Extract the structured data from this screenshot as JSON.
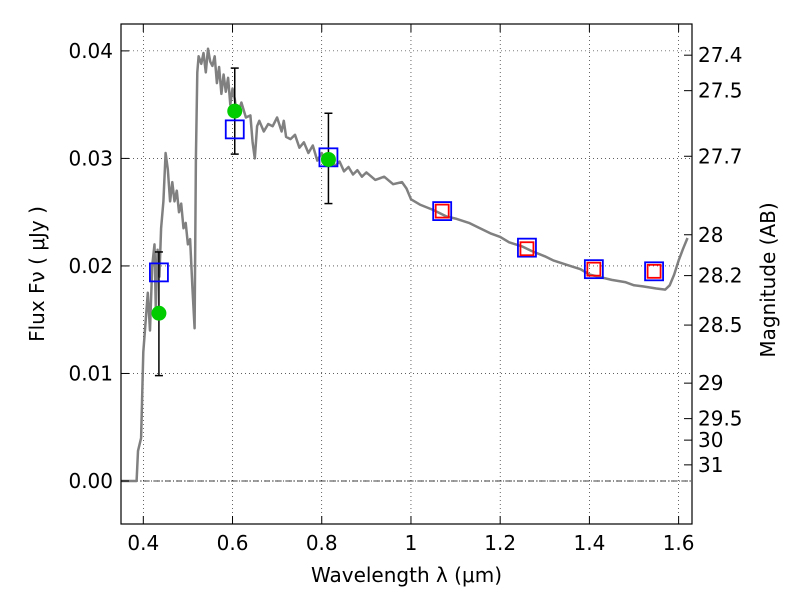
{
  "chart_data": {
    "type": "scatter",
    "xlabel": "Wavelength  λ (μm)",
    "ylabel_left": "Flux  Fν  ( μJy )",
    "ylabel_right": "Magnitude (AB)",
    "xlim": [
      0.35,
      1.63
    ],
    "ylim": [
      -0.004,
      0.0425
    ],
    "x_ticks": [
      0.4,
      0.6,
      0.8,
      1.0,
      1.2,
      1.4,
      1.6
    ],
    "x_tick_labels": [
      "0.4",
      "0.6",
      "0.8",
      "1",
      "1.2",
      "1.4",
      "1.6"
    ],
    "y_ticks": [
      0.0,
      0.01,
      0.02,
      0.03,
      0.04
    ],
    "y_tick_labels": [
      "0.00",
      "0.01",
      "0.02",
      "0.03",
      "0.04"
    ],
    "right_ticks": [
      {
        "label": "27.4",
        "flux": 0.0396
      },
      {
        "label": "27.5",
        "flux": 0.0363
      },
      {
        "label": "27.7",
        "flux": 0.0302
      },
      {
        "label": "28",
        "flux": 0.0229
      },
      {
        "label": "28.2",
        "flux": 0.0191
      },
      {
        "label": "28.5",
        "flux": 0.0145
      },
      {
        "label": "29",
        "flux": 0.0091
      },
      {
        "label": "29.5",
        "flux": 0.0058
      },
      {
        "label": "30",
        "flux": 0.0038
      },
      {
        "label": "31",
        "flux": 0.0015
      }
    ],
    "grid": true,
    "series": [
      {
        "type": "line",
        "color": "#808080",
        "x": [
          0.35,
          0.385,
          0.388,
          0.395,
          0.4,
          0.41,
          0.415,
          0.42,
          0.425,
          0.428,
          0.432,
          0.436,
          0.44,
          0.445,
          0.45,
          0.455,
          0.46,
          0.465,
          0.47,
          0.475,
          0.48,
          0.485,
          0.49,
          0.495,
          0.5,
          0.505,
          0.51,
          0.515,
          0.518,
          0.521,
          0.524,
          0.53,
          0.535,
          0.54,
          0.545,
          0.55,
          0.555,
          0.56,
          0.565,
          0.57,
          0.575,
          0.58,
          0.585,
          0.59,
          0.595,
          0.6,
          0.605,
          0.61,
          0.62,
          0.63,
          0.64,
          0.645,
          0.65,
          0.655,
          0.66,
          0.67,
          0.68,
          0.69,
          0.7,
          0.71,
          0.715,
          0.72,
          0.73,
          0.74,
          0.75,
          0.76,
          0.77,
          0.78,
          0.79,
          0.8,
          0.81,
          0.82,
          0.83,
          0.84,
          0.85,
          0.86,
          0.87,
          0.88,
          0.89,
          0.9,
          0.92,
          0.94,
          0.96,
          0.98,
          0.99,
          1.0,
          1.02,
          1.05,
          1.08,
          1.1,
          1.13,
          1.15,
          1.18,
          1.2,
          1.22,
          1.25,
          1.27,
          1.3,
          1.32,
          1.35,
          1.38,
          1.4,
          1.42,
          1.45,
          1.48,
          1.5,
          1.52,
          1.55,
          1.57,
          1.58,
          1.59,
          1.6,
          1.61,
          1.62
        ],
        "y": [
          0.0,
          0.0,
          0.0028,
          0.004,
          0.012,
          0.0175,
          0.014,
          0.02,
          0.022,
          0.016,
          0.0215,
          0.019,
          0.0235,
          0.026,
          0.0305,
          0.029,
          0.026,
          0.0278,
          0.026,
          0.027,
          0.025,
          0.0258,
          0.0235,
          0.024,
          0.022,
          0.0225,
          0.018,
          0.0142,
          0.03,
          0.038,
          0.0395,
          0.0388,
          0.0398,
          0.038,
          0.0402,
          0.039,
          0.0386,
          0.0395,
          0.037,
          0.0385,
          0.036,
          0.0378,
          0.0362,
          0.0375,
          0.035,
          0.0365,
          0.0355,
          0.034,
          0.0352,
          0.0338,
          0.034,
          0.0315,
          0.03,
          0.033,
          0.0335,
          0.0325,
          0.0332,
          0.033,
          0.0338,
          0.0325,
          0.0335,
          0.032,
          0.0318,
          0.0322,
          0.031,
          0.0315,
          0.0305,
          0.0312,
          0.0298,
          0.0305,
          0.0295,
          0.03,
          0.0293,
          0.0297,
          0.0288,
          0.0292,
          0.0285,
          0.0289,
          0.0283,
          0.0287,
          0.028,
          0.0283,
          0.0276,
          0.0278,
          0.0272,
          0.0262,
          0.0257,
          0.0252,
          0.0246,
          0.0244,
          0.024,
          0.0236,
          0.023,
          0.0227,
          0.0222,
          0.0218,
          0.0214,
          0.0209,
          0.0205,
          0.0201,
          0.0197,
          0.0192,
          0.019,
          0.0187,
          0.0185,
          0.0182,
          0.0181,
          0.0179,
          0.0178,
          0.0182,
          0.0192,
          0.0205,
          0.0216,
          0.0226
        ]
      },
      {
        "type": "open_square",
        "color": "#0000ff",
        "x": [
          0.435,
          0.605,
          0.815,
          1.07,
          1.26,
          1.41,
          1.545
        ],
        "y": [
          0.0194,
          0.0327,
          0.0301,
          0.0251,
          0.0217,
          0.0197,
          0.0195
        ]
      },
      {
        "type": "open_square",
        "color": "#ff0000",
        "x": [
          1.07,
          1.26,
          1.41,
          1.545
        ],
        "y": [
          0.0251,
          0.0216,
          0.0197,
          0.0195
        ]
      },
      {
        "type": "point_with_errorbar",
        "color": "#00cc00",
        "x": [
          0.435,
          0.605,
          0.815
        ],
        "y": [
          0.0156,
          0.0344,
          0.0299
        ],
        "yerr_low": [
          0.0098,
          0.0304,
          0.0258
        ],
        "yerr_high": [
          0.0213,
          0.0384,
          0.0342
        ]
      }
    ]
  }
}
